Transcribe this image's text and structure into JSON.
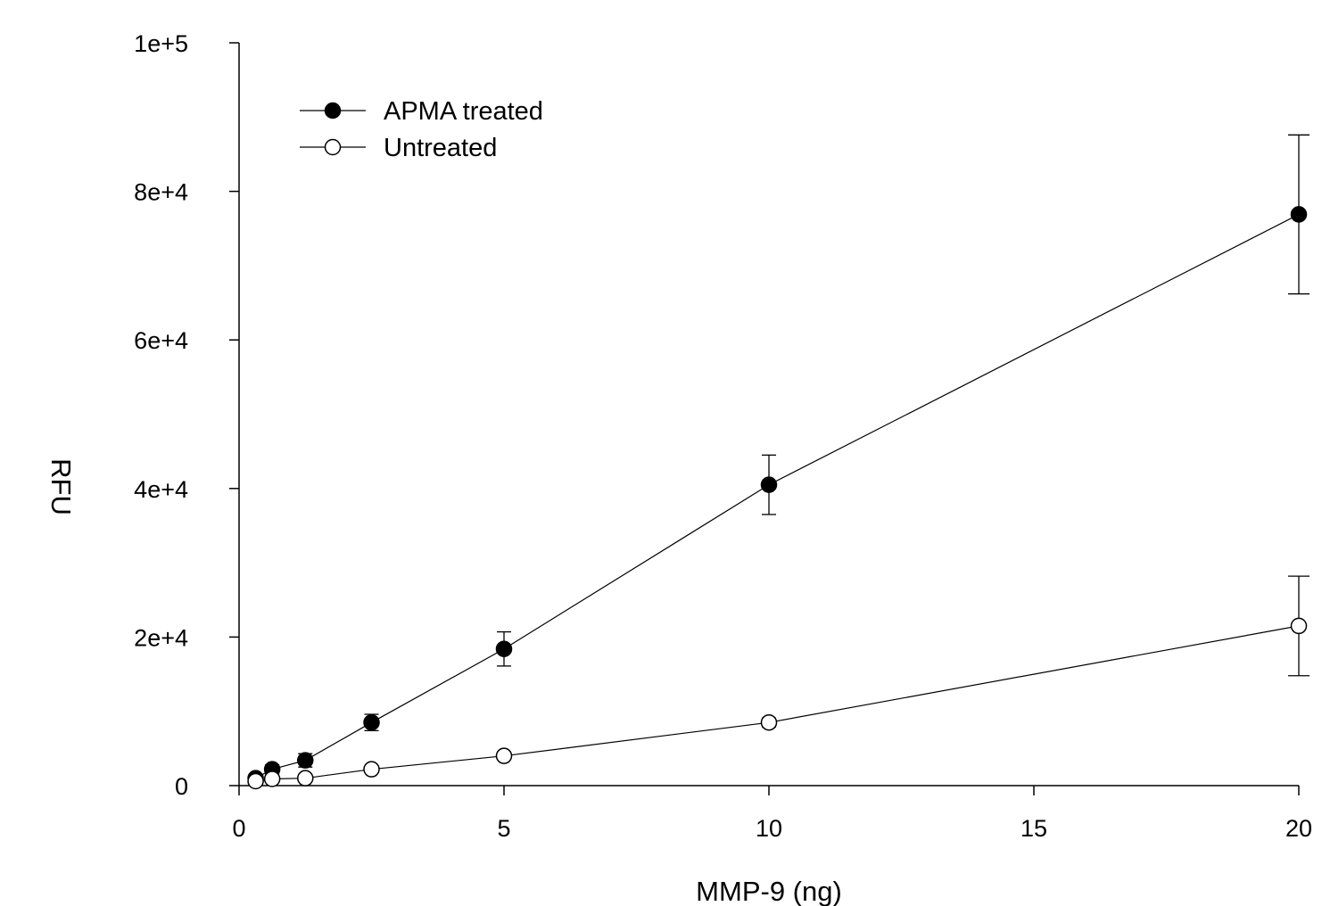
{
  "chart_data": {
    "type": "scatter",
    "title": "",
    "xlabel": "MMP-9 (ng)",
    "ylabel": "RFU",
    "xlim": [
      0,
      20
    ],
    "ylim": [
      0,
      100000
    ],
    "x_ticks": [
      0,
      5,
      10,
      15,
      20
    ],
    "x_tick_labels": [
      "0",
      "5",
      "10",
      "15",
      "20"
    ],
    "y_ticks": [
      0,
      20000,
      40000,
      60000,
      80000,
      100000
    ],
    "y_tick_labels": [
      "0",
      "2e+4",
      "4e+4",
      "6e+4",
      "8e+4",
      "1e+5"
    ],
    "grid": false,
    "legend_position": "top-left",
    "series": [
      {
        "name": "APMA treated",
        "marker": "filled-circle",
        "color": "#000000",
        "x": [
          0.3125,
          0.625,
          1.25,
          2.5,
          5,
          10,
          20
        ],
        "y": [
          1000,
          2200,
          3400,
          8500,
          18400,
          40500,
          76900
        ],
        "error": [
          300,
          600,
          900,
          1100,
          2300,
          4000,
          10700
        ]
      },
      {
        "name": "Untreated",
        "marker": "open-circle",
        "color": "#ffffff",
        "x": [
          0.3125,
          0.625,
          1.25,
          2.5,
          5,
          10,
          20
        ],
        "y": [
          600,
          900,
          1000,
          2200,
          4000,
          8500,
          21500
        ],
        "error": [
          200,
          200,
          300,
          300,
          500,
          600,
          6700
        ]
      }
    ]
  }
}
